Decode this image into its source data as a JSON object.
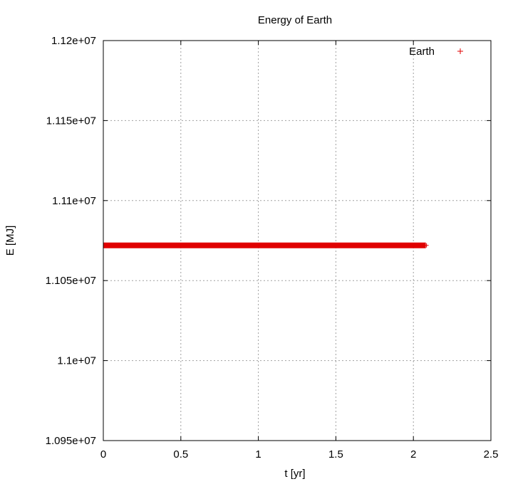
{
  "chart_data": {
    "type": "scatter",
    "title": "Energy of Earth",
    "xlabel": "t [yr]",
    "ylabel": "E [MJ]",
    "xlim": [
      0,
      2.5
    ],
    "ylim": [
      10950000,
      11200000
    ],
    "xticks": [
      0,
      0.5,
      1,
      1.5,
      2,
      2.5
    ],
    "xtick_labels": [
      "0",
      "0.5",
      "1",
      "1.5",
      "2",
      "2.5"
    ],
    "yticks": [
      10950000,
      11000000,
      11050000,
      11100000,
      11150000,
      11200000
    ],
    "ytick_labels": [
      "1.095e+07",
      "1.1e+07",
      "1.105e+07",
      "1.11e+07",
      "1.115e+07",
      "1.12e+07"
    ],
    "grid": true,
    "legend_position": "top-right",
    "series": [
      {
        "name": "Earth",
        "color": "#e00000",
        "marker": "plus",
        "x_range": [
          0,
          2.08
        ],
        "y_constant": 11072000
      }
    ]
  }
}
